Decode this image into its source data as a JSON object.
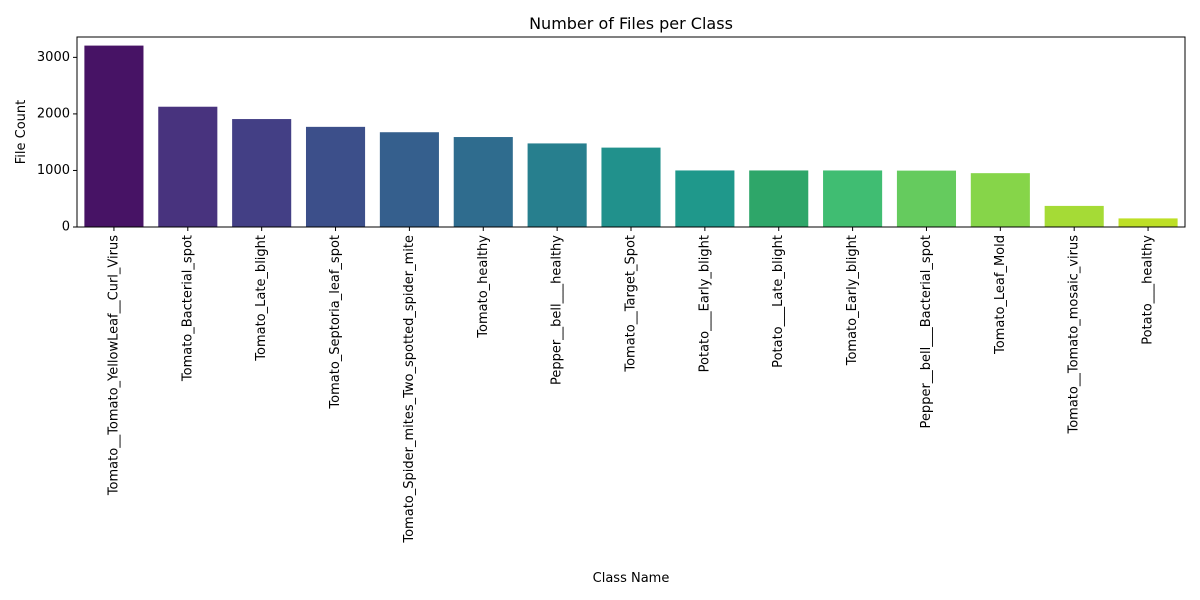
{
  "chart_data": {
    "type": "bar",
    "title": "Number of Files per Class",
    "xlabel": "Class Name",
    "ylabel": "File Count",
    "ylim": [
      0,
      3360
    ],
    "yticks": [
      0,
      1000,
      2000,
      3000
    ],
    "grid": false,
    "legend": "none",
    "categories": [
      "Tomato__Tomato_YellowLeaf__Curl_Virus",
      "Tomato_Bacterial_spot",
      "Tomato_Late_blight",
      "Tomato_Septoria_leaf_spot",
      "Tomato_Spider_mites_Two_spotted_spider_mite",
      "Tomato_healthy",
      "Pepper__bell___healthy",
      "Tomato__Target_Spot",
      "Potato___Early_blight",
      "Potato___Late_blight",
      "Tomato_Early_blight",
      "Pepper__bell___Bacterial_spot",
      "Tomato_Leaf_Mold",
      "Tomato__Tomato_mosaic_virus",
      "Potato___healthy"
    ],
    "values": [
      3208,
      2127,
      1909,
      1771,
      1676,
      1591,
      1478,
      1404,
      1000,
      1000,
      1000,
      997,
      952,
      373,
      152
    ],
    "colors": [
      "#471365",
      "#48337e",
      "#433f85",
      "#3c4f8a",
      "#355f8d",
      "#2f6c8e",
      "#277f8e",
      "#21918c",
      "#1f988b",
      "#2ea669",
      "#40bd72",
      "#65cb5e",
      "#86d549",
      "#a5db36",
      "#bddf26"
    ]
  }
}
